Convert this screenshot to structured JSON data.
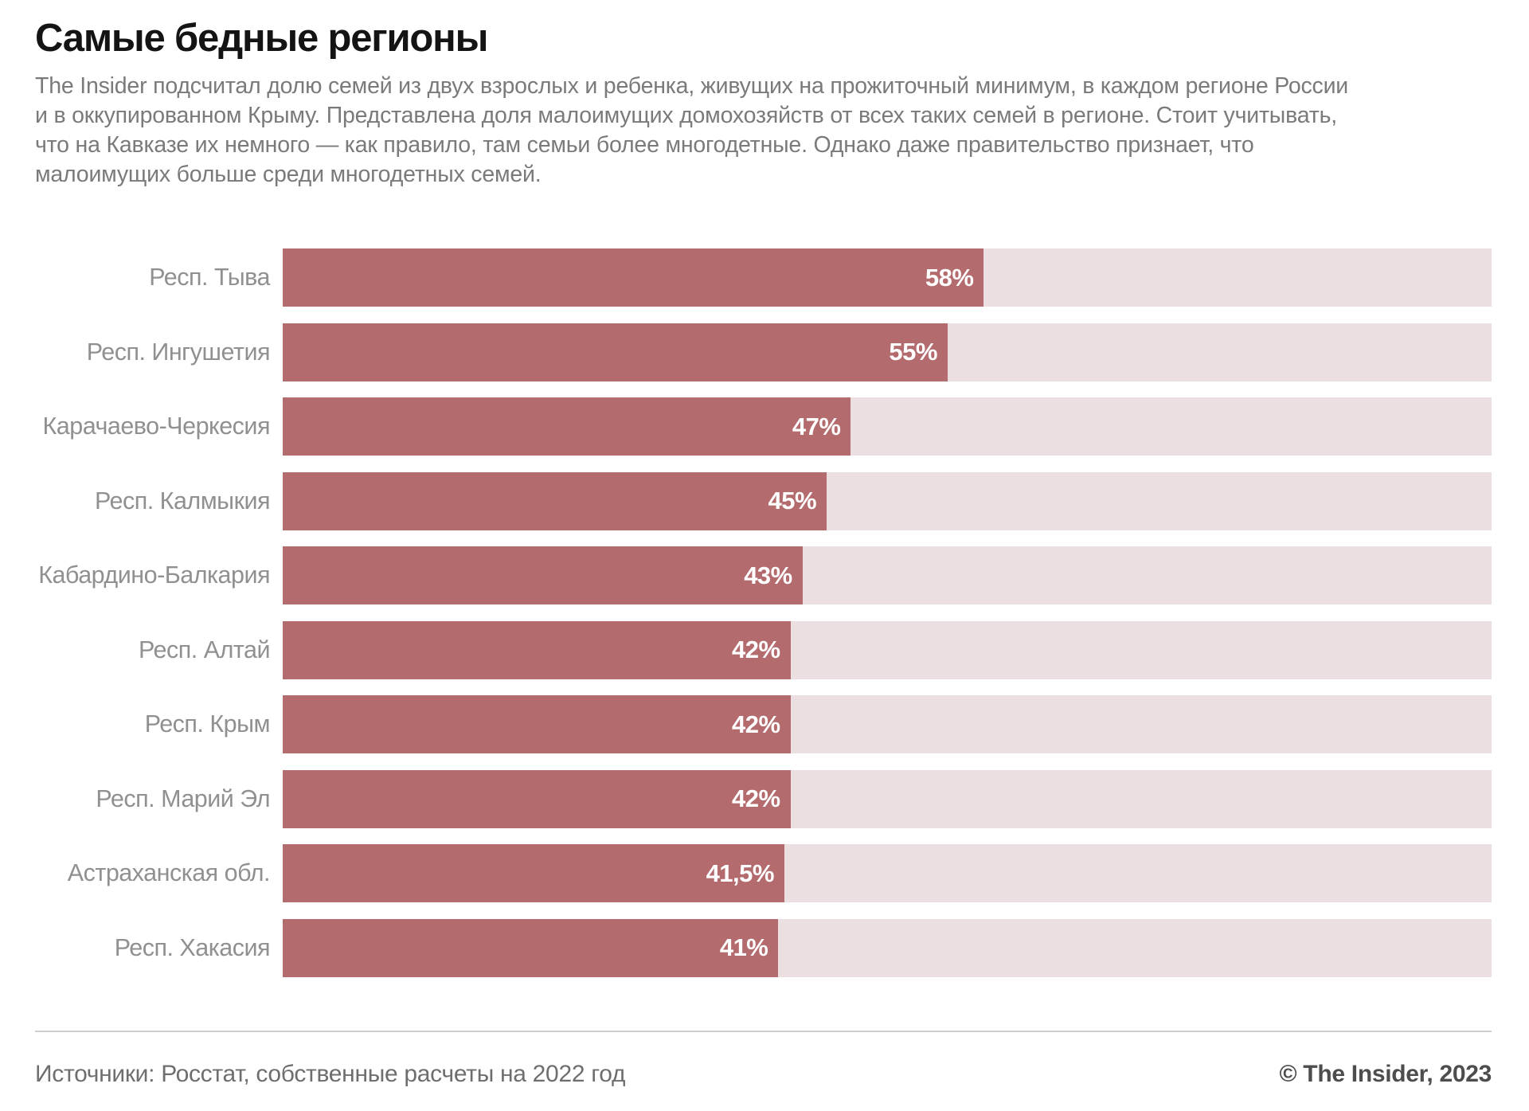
{
  "title": "Самые бедные регионы",
  "subtitle": {
    "lines": [
      "The Insider подсчитал долю семей из двух взрослых и ребенка, живущих на прожиточный минимум, в каждом регионе России",
      "и в оккупированном Крыму. Представлена доля малоимущих домохозяйств от всех таких семей в регионе. Стоит учитывать,",
      "что на Кавказе их немного — как правило, там семьи более многодетные. Однако даже правительство признает, что",
      "малоимущих больше среди многодетных семей."
    ]
  },
  "colors": {
    "bar_fill": "#b36b6e",
    "bar_track": "#ecdfe1",
    "value_text": "#ffffff",
    "label_text": "#909090",
    "divider": "#cfcfcf"
  },
  "chart_data": {
    "type": "bar",
    "orientation": "horizontal",
    "title": "Самые бедные регионы",
    "unit": "%",
    "xlim": [
      0,
      100
    ],
    "grid": false,
    "legend": false,
    "categories": [
      "Респ. Тыва",
      "Респ. Ингушетия",
      "Карачаево-Черкесия",
      "Респ. Калмыкия",
      "Кабардино-Балкария",
      "Респ. Алтай",
      "Респ. Крым",
      "Респ. Марий Эл",
      "Астраханская обл.",
      "Респ. Хакасия"
    ],
    "values": [
      58,
      55,
      47,
      45,
      43,
      42,
      42,
      42,
      41.5,
      41
    ],
    "value_labels": [
      "58%",
      "55%",
      "47%",
      "45%",
      "43%",
      "42%",
      "42%",
      "42%",
      "41,5%",
      "41%"
    ]
  },
  "footer": {
    "source": "Источники: Росстат, собственные расчеты на 2022 год",
    "copyright": "© The Insider, 2023"
  }
}
